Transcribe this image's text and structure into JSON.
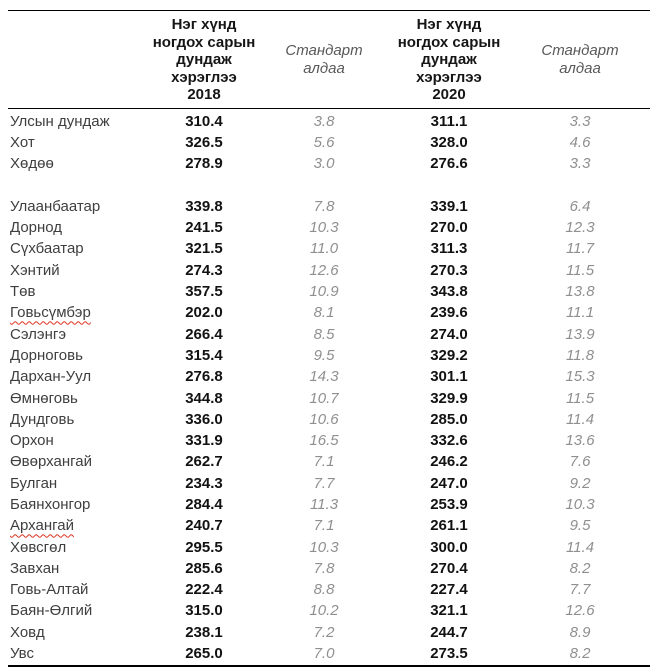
{
  "table": {
    "header": {
      "avg2018": "Нэг хүнд\nногдох сарын\nдундаж\nхэрэглээ\n2018",
      "se2018": "Стандарт\nалдаа",
      "avg2020": "Нэг хүнд\nногдох сарын\nдундаж\nхэрэглээ\n2020",
      "se2020": "Стандарт\nалдаа"
    },
    "summary_rows": [
      {
        "label": "Улсын дундаж",
        "avg2018": "310.4",
        "se2018": "3.8",
        "avg2020": "311.1",
        "se2020": "3.3"
      },
      {
        "label": "Хот",
        "avg2018": "326.5",
        "se2018": "5.6",
        "avg2020": "328.0",
        "se2020": "4.6"
      },
      {
        "label": "Хөдөө",
        "avg2018": "278.9",
        "se2018": "3.0",
        "avg2020": "276.6",
        "se2020": "3.3"
      }
    ],
    "region_rows": [
      {
        "label": "Улаанбаатар",
        "avg2018": "339.8",
        "se2018": "7.8",
        "avg2020": "339.1",
        "se2020": "6.4"
      },
      {
        "label": "Дорнод",
        "avg2018": "241.5",
        "se2018": "10.3",
        "avg2020": "270.0",
        "se2020": "12.3"
      },
      {
        "label": "Сүхбаатар",
        "avg2018": "321.5",
        "se2018": "11.0",
        "avg2020": "311.3",
        "se2020": "11.7"
      },
      {
        "label": "Хэнтий",
        "avg2018": "274.3",
        "se2018": "12.6",
        "avg2020": "270.3",
        "se2020": "11.5"
      },
      {
        "label": "Төв",
        "avg2018": "357.5",
        "se2018": "10.9",
        "avg2020": "343.8",
        "se2020": "13.8"
      },
      {
        "label": "Говьсүмбэр",
        "avg2018": "202.0",
        "se2018": "8.1",
        "avg2020": "239.6",
        "se2020": "11.1",
        "misspelled": true
      },
      {
        "label": "Сэлэнгэ",
        "avg2018": "266.4",
        "se2018": "8.5",
        "avg2020": "274.0",
        "se2020": "13.9"
      },
      {
        "label": "Дорноговь",
        "avg2018": "315.4",
        "se2018": "9.5",
        "avg2020": "329.2",
        "se2020": "11.8"
      },
      {
        "label": "Дархан-Уул",
        "avg2018": "276.8",
        "se2018": "14.3",
        "avg2020": "301.1",
        "se2020": "15.3"
      },
      {
        "label": "Өмнөговь",
        "avg2018": "344.8",
        "se2018": "10.7",
        "avg2020": "329.9",
        "se2020": "11.5"
      },
      {
        "label": "Дундговь",
        "avg2018": "336.0",
        "se2018": "10.6",
        "avg2020": "285.0",
        "se2020": "11.4"
      },
      {
        "label": "Орхон",
        "avg2018": "331.9",
        "se2018": "16.5",
        "avg2020": "332.6",
        "se2020": "13.6"
      },
      {
        "label": "Өвөрхангай",
        "avg2018": "262.7",
        "se2018": "7.1",
        "avg2020": "246.2",
        "se2020": "7.6"
      },
      {
        "label": "Булган",
        "avg2018": "234.3",
        "se2018": "7.7",
        "avg2020": "247.0",
        "se2020": "9.2"
      },
      {
        "label": "Баянхонгор",
        "avg2018": "284.4",
        "se2018": "11.3",
        "avg2020": "253.9",
        "se2020": "10.3"
      },
      {
        "label": "Архангай",
        "avg2018": "240.7",
        "se2018": "7.1",
        "avg2020": "261.1",
        "se2020": "9.5",
        "misspelled": true
      },
      {
        "label": "Хөвсгөл",
        "avg2018": "295.5",
        "se2018": "10.3",
        "avg2020": "300.0",
        "se2020": "11.4"
      },
      {
        "label": "Завхан",
        "avg2018": "285.6",
        "se2018": "7.8",
        "avg2020": "270.4",
        "se2020": "8.2"
      },
      {
        "label": "Говь-Алтай",
        "avg2018": "222.4",
        "se2018": "8.8",
        "avg2020": "227.4",
        "se2020": "7.7"
      },
      {
        "label": "Баян-Өлгий",
        "avg2018": "315.0",
        "se2018": "10.2",
        "avg2020": "321.1",
        "se2020": "12.6"
      },
      {
        "label": "Ховд",
        "avg2018": "238.1",
        "se2018": "7.2",
        "avg2020": "244.7",
        "se2020": "8.9"
      },
      {
        "label": "Увс",
        "avg2018": "265.0",
        "se2018": "7.0",
        "avg2020": "273.5",
        "se2020": "8.2"
      }
    ],
    "colors": {
      "value_text": "#121212",
      "label_text": "#3f3f3f",
      "std_error_text": "#8f8f8f",
      "header_italic_text": "#595959",
      "border": "#000000",
      "spellcheck_underline": "#e0301e"
    }
  }
}
